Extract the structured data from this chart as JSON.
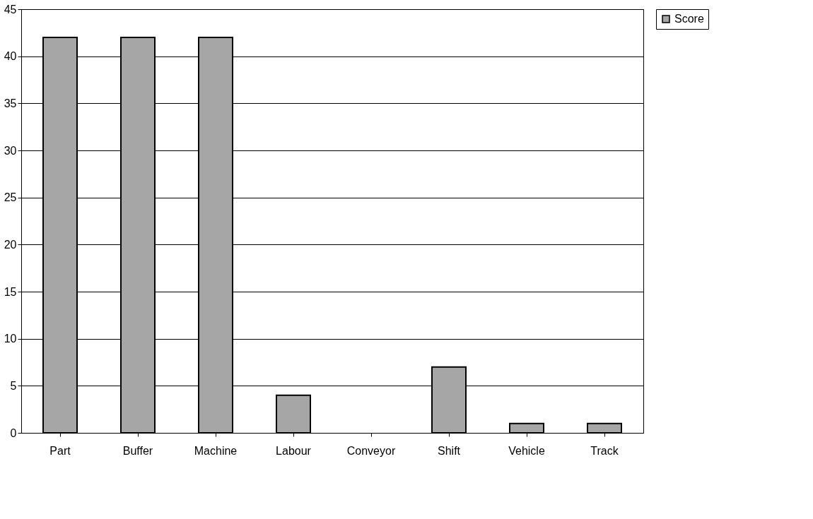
{
  "chart_data": {
    "type": "bar",
    "categories": [
      "Part",
      "Buffer",
      "Machine",
      "Labour",
      "Conveyor",
      "Shift",
      "Vehicle",
      "Track"
    ],
    "series": [
      {
        "name": "Score",
        "color": "#a6a6a6",
        "values": [
          42,
          42,
          42,
          4,
          0,
          7,
          1,
          1
        ]
      }
    ],
    "ylim": [
      0,
      45
    ],
    "yticks": [
      0,
      5,
      10,
      15,
      20,
      25,
      30,
      35,
      40,
      45
    ],
    "grid": "y",
    "legend": "top right"
  }
}
